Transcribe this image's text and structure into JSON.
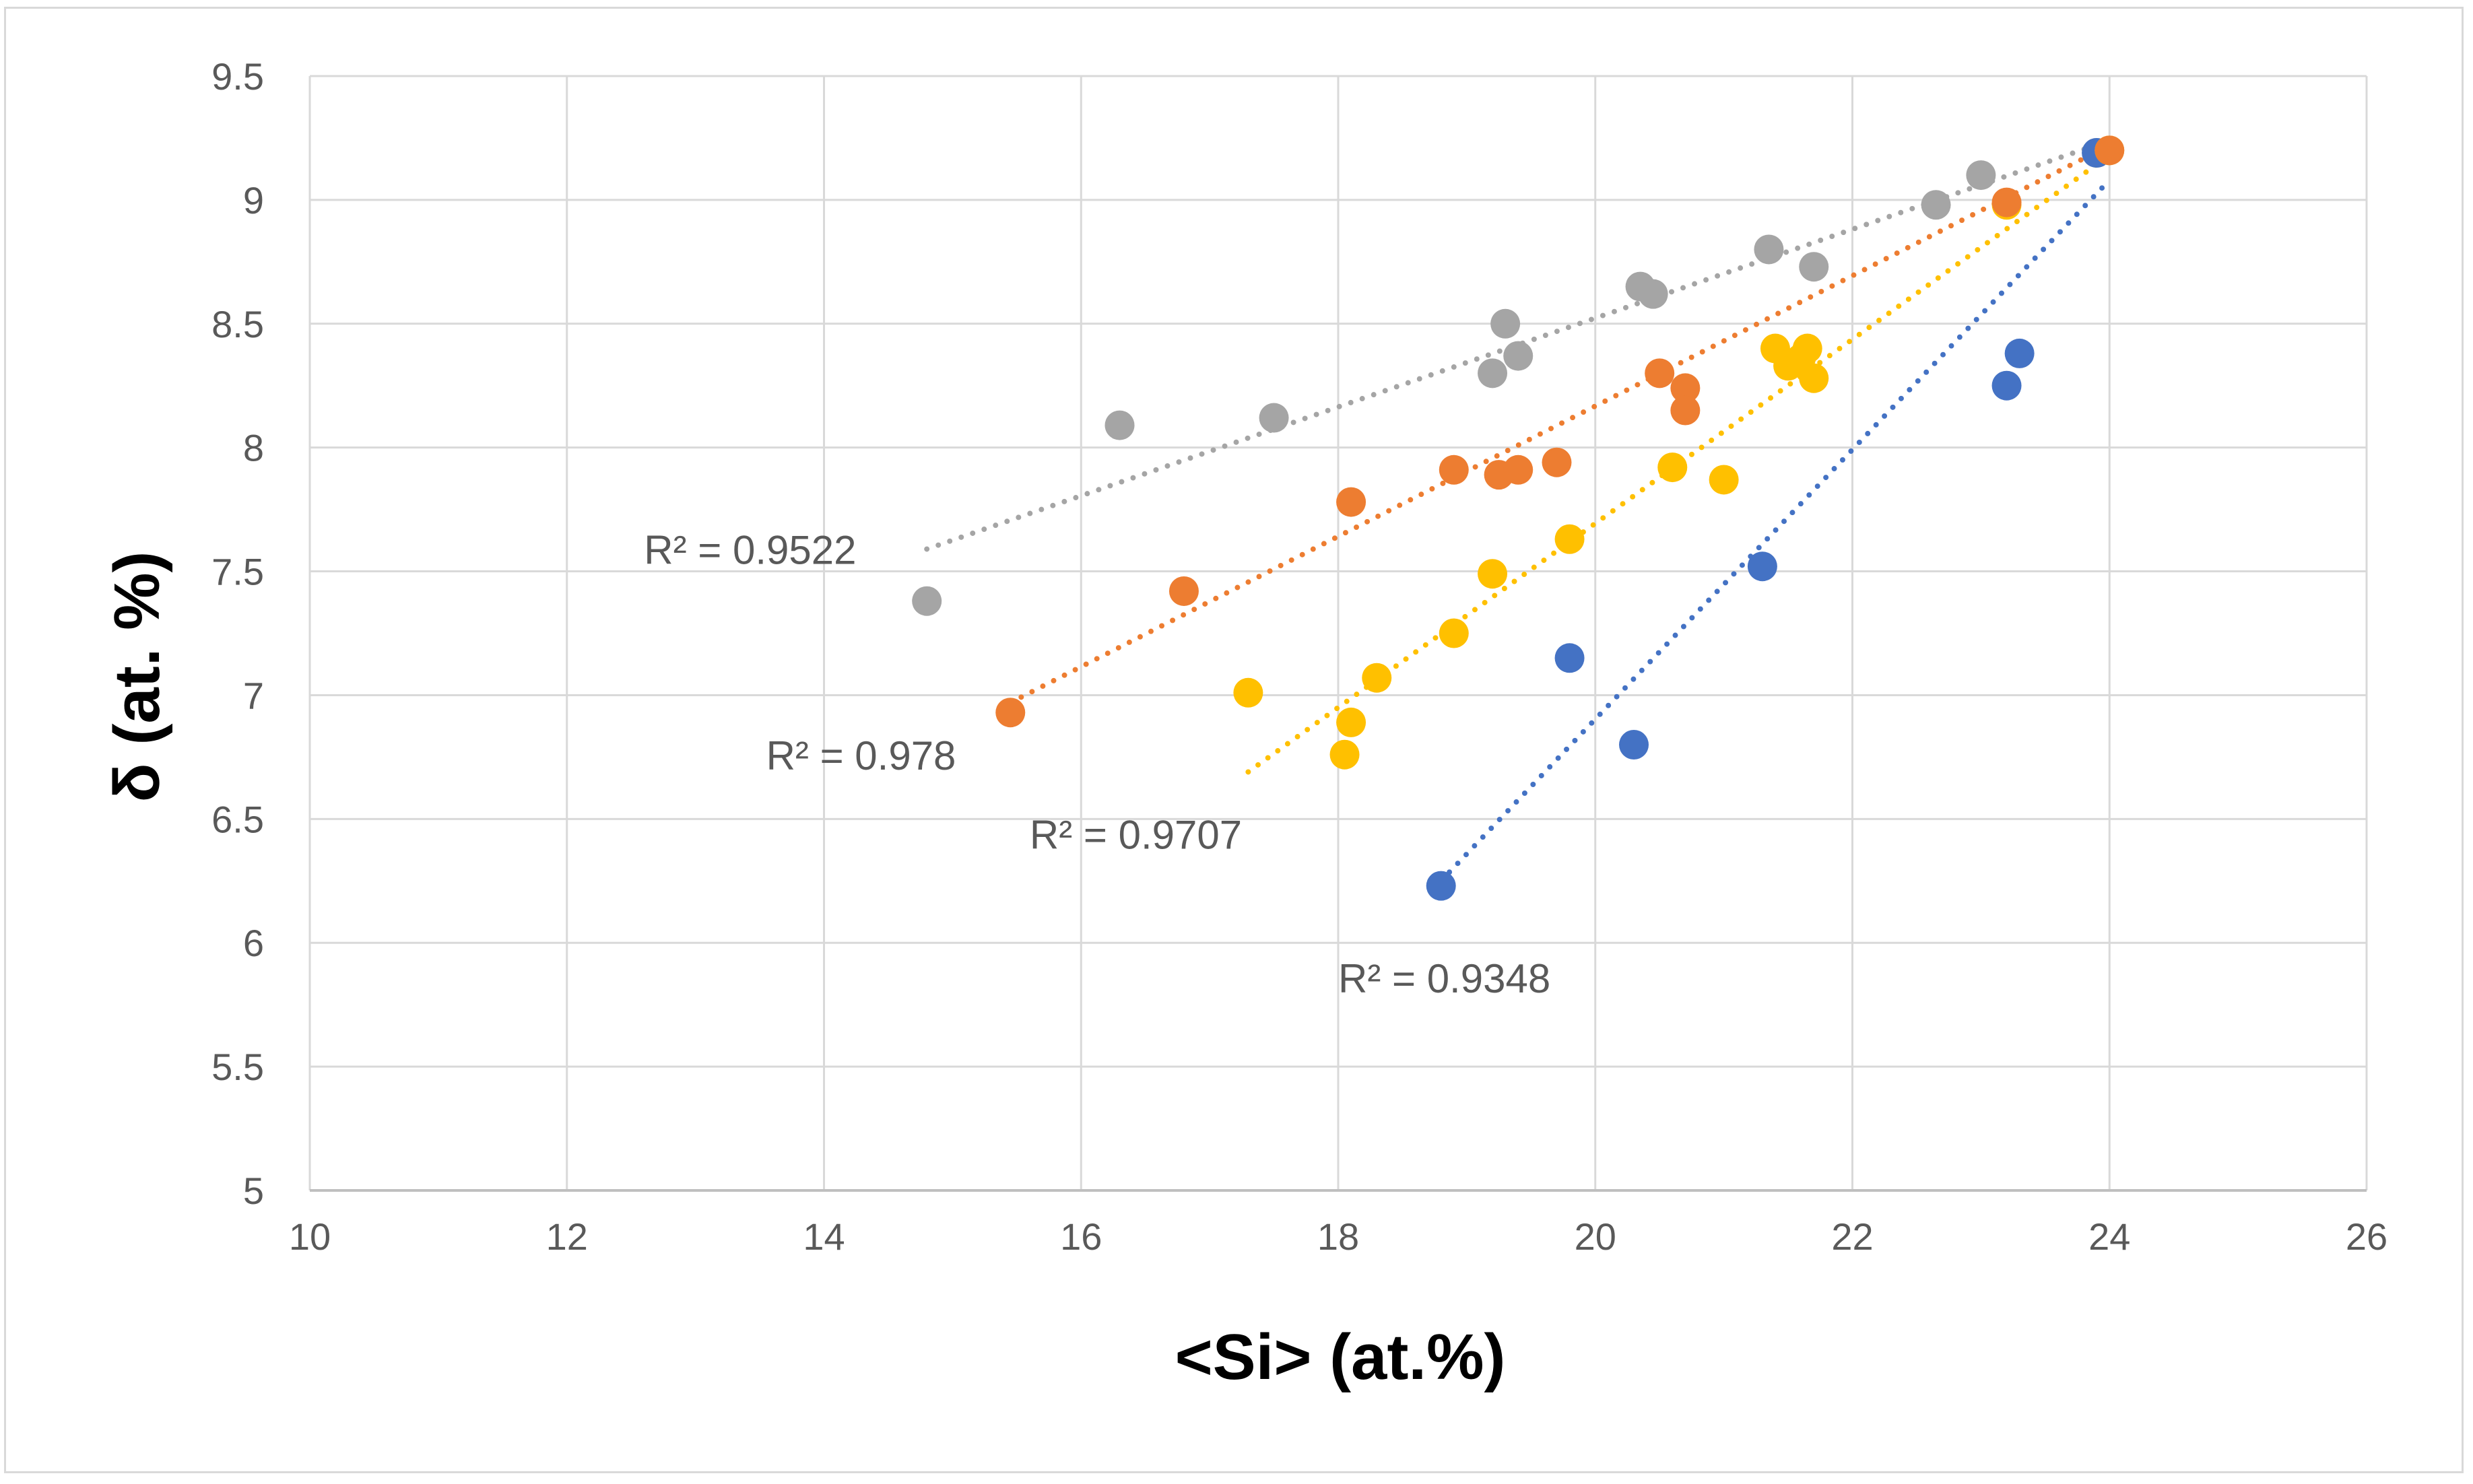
{
  "chart_data": {
    "type": "scatter",
    "title": "",
    "xlabel": "<Si> (at.%)",
    "ylabel": "δ (at. %)",
    "xlim": [
      10,
      26
    ],
    "ylim": [
      5,
      9.5
    ],
    "xticks": [
      10,
      12,
      14,
      16,
      18,
      20,
      22,
      24,
      26
    ],
    "yticks": [
      5,
      5.5,
      6,
      6.5,
      7,
      7.5,
      8,
      8.5,
      9,
      9.5
    ],
    "xtick_labels": [
      "10",
      "12",
      "14",
      "16",
      "18",
      "20",
      "22",
      "24",
      "26"
    ],
    "ytick_labels": [
      "5",
      "5.5",
      "6",
      "6.5",
      "7",
      "7.5",
      "8",
      "8.5",
      "9",
      "9.5"
    ],
    "grid": true,
    "legend": "none",
    "series": [
      {
        "name": "blue",
        "color": "#4472c4",
        "points": [
          [
            18.8,
            6.23
          ],
          [
            19.8,
            7.15
          ],
          [
            20.3,
            6.8
          ],
          [
            21.3,
            7.52
          ],
          [
            23.2,
            8.25
          ],
          [
            23.3,
            8.38
          ],
          [
            23.9,
            9.19
          ]
        ],
        "trendline": {
          "x": [
            18.8,
            24.0
          ],
          "y": [
            6.25,
            9.08
          ]
        },
        "r2_label": "R² = 0.9348"
      },
      {
        "name": "orange",
        "color": "#ed7d31",
        "points": [
          [
            15.45,
            6.93
          ],
          [
            16.8,
            7.42
          ],
          [
            18.1,
            7.78
          ],
          [
            18.9,
            7.91
          ],
          [
            19.25,
            7.89
          ],
          [
            19.4,
            7.91
          ],
          [
            19.7,
            7.94
          ],
          [
            20.5,
            8.3
          ],
          [
            20.7,
            8.24
          ],
          [
            20.7,
            8.15
          ],
          [
            23.2,
            8.99
          ],
          [
            24.0,
            9.2
          ]
        ],
        "trendline": {
          "x": [
            15.45,
            24.0
          ],
          "y": [
            6.97,
            9.22
          ]
        },
        "r2_label": "R² = 0.978"
      },
      {
        "name": "yellow",
        "color": "#ffc000",
        "points": [
          [
            17.3,
            7.01
          ],
          [
            18.05,
            6.76
          ],
          [
            18.1,
            6.89
          ],
          [
            18.3,
            7.07
          ],
          [
            18.9,
            7.25
          ],
          [
            19.2,
            7.49
          ],
          [
            19.8,
            7.63
          ],
          [
            20.6,
            7.92
          ],
          [
            21.0,
            7.87
          ],
          [
            21.4,
            8.4
          ],
          [
            21.5,
            8.33
          ],
          [
            21.6,
            8.36
          ],
          [
            21.65,
            8.4
          ],
          [
            21.7,
            8.28
          ],
          [
            23.2,
            8.98
          ],
          [
            24.0,
            9.2
          ]
        ],
        "trendline": {
          "x": [
            17.3,
            24.0
          ],
          "y": [
            6.69,
            9.18
          ]
        },
        "r2_label": "R² = 0.9707"
      },
      {
        "name": "gray",
        "color": "#a5a5a5",
        "points": [
          [
            14.8,
            7.38
          ],
          [
            16.3,
            8.09
          ],
          [
            17.5,
            8.12
          ],
          [
            19.2,
            8.3
          ],
          [
            19.3,
            8.5
          ],
          [
            19.4,
            8.37
          ],
          [
            20.35,
            8.65
          ],
          [
            20.45,
            8.62
          ],
          [
            21.35,
            8.8
          ],
          [
            21.7,
            8.73
          ],
          [
            22.65,
            8.98
          ],
          [
            23.0,
            9.1
          ],
          [
            23.9,
            9.19
          ]
        ],
        "trendline": {
          "x": [
            14.8,
            24.0
          ],
          "y": [
            7.59,
            9.24
          ]
        },
        "r2_label": "R² = 0.9522"
      }
    ]
  }
}
